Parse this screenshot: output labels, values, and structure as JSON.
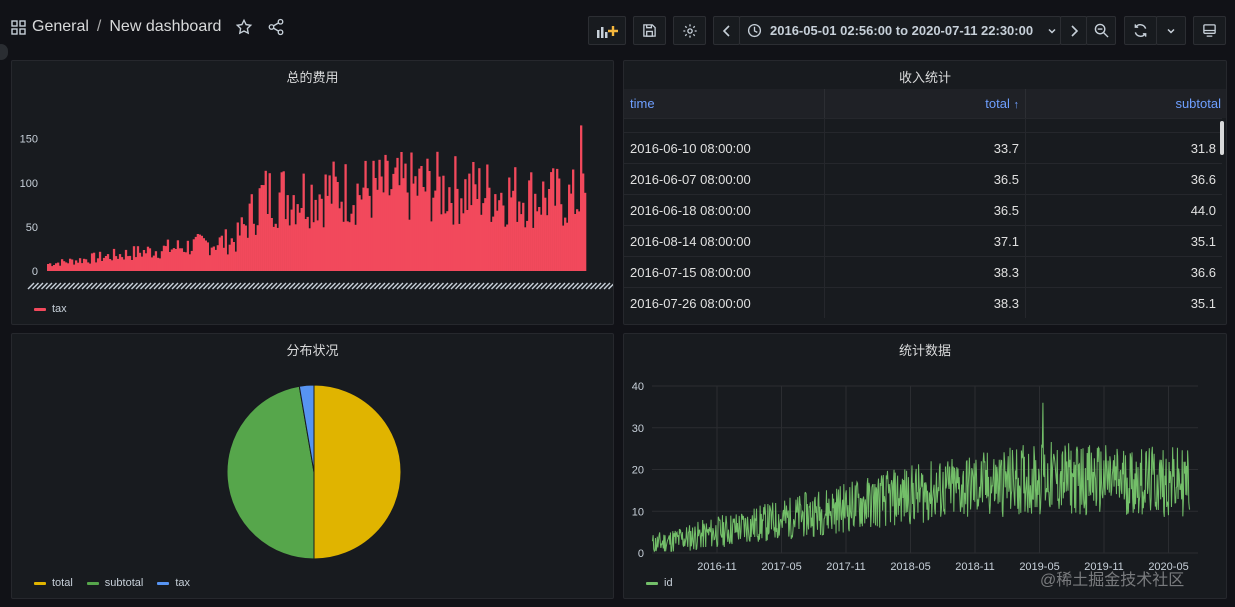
{
  "header": {
    "breadcrumb_folder": "General",
    "breadcrumb_separator": "/",
    "dashboard_title": "New dashboard",
    "time_range": "2016-05-01 02:56:00 to 2020-07-11 22:30:00"
  },
  "colors": {
    "tax": "#f2495c",
    "total": "#e0b400",
    "subtotal": "#56a64b",
    "tax_pie": "#5794f2",
    "id": "#73bf69",
    "link": "#6e9fff"
  },
  "panels": {
    "tax_chart": {
      "title": "总的费用",
      "chart_data": {
        "type": "bar",
        "series": [
          {
            "name": "tax"
          }
        ],
        "y_ticks": [
          "0",
          "50",
          "100",
          "150"
        ],
        "ylim": [
          0,
          170
        ],
        "approx_trend": [
          {
            "position": "start",
            "value": 8
          },
          {
            "position": "35%",
            "value": 35
          },
          {
            "position": "40%",
            "value": 85
          },
          {
            "position": "70%",
            "value": 95
          },
          {
            "position": "end",
            "value": 80
          }
        ],
        "max_spike": 165
      },
      "legend": [
        "tax"
      ]
    },
    "income_table": {
      "title": "收入统计",
      "columns": [
        "time",
        "total",
        "subtotal"
      ],
      "sort_column": "total",
      "sort_indicator": "↑",
      "rows": [
        [
          "2016-06-10 08:00:00",
          "33.7",
          "31.8"
        ],
        [
          "2016-06-07 08:00:00",
          "36.5",
          "36.6"
        ],
        [
          "2016-06-18 08:00:00",
          "36.5",
          "44.0"
        ],
        [
          "2016-08-14 08:00:00",
          "37.1",
          "35.1"
        ],
        [
          "2016-07-15 08:00:00",
          "38.3",
          "36.6"
        ],
        [
          "2016-07-26 08:00:00",
          "38.3",
          "35.1"
        ]
      ]
    },
    "pie_chart": {
      "title": "分布状况",
      "chart_data": {
        "type": "pie",
        "slices": [
          {
            "name": "total",
            "value": 50.0
          },
          {
            "name": "subtotal",
            "value": 47.3
          },
          {
            "name": "tax",
            "value": 2.7
          }
        ]
      },
      "legend": [
        "total",
        "subtotal",
        "tax"
      ]
    },
    "id_chart": {
      "title": "统计数据",
      "chart_data": {
        "type": "line",
        "series": [
          {
            "name": "id"
          }
        ],
        "y_ticks": [
          "0",
          "10",
          "20",
          "30",
          "40"
        ],
        "ylim": [
          0,
          40
        ],
        "x_ticks": [
          "2016-11",
          "2017-05",
          "2017-11",
          "2018-05",
          "2018-11",
          "2019-05",
          "2019-11",
          "2020-05"
        ],
        "approx_trend": [
          {
            "x": "2016-05",
            "y": 2
          },
          {
            "x": "2017-05",
            "y": 8
          },
          {
            "x": "2018-05",
            "y": 14
          },
          {
            "x": "2019-05",
            "y": 18
          },
          {
            "x": "2020-05",
            "y": 17
          }
        ],
        "max_spike": 36
      },
      "legend": [
        "id"
      ]
    }
  },
  "watermark": "@稀土掘金技术社区"
}
